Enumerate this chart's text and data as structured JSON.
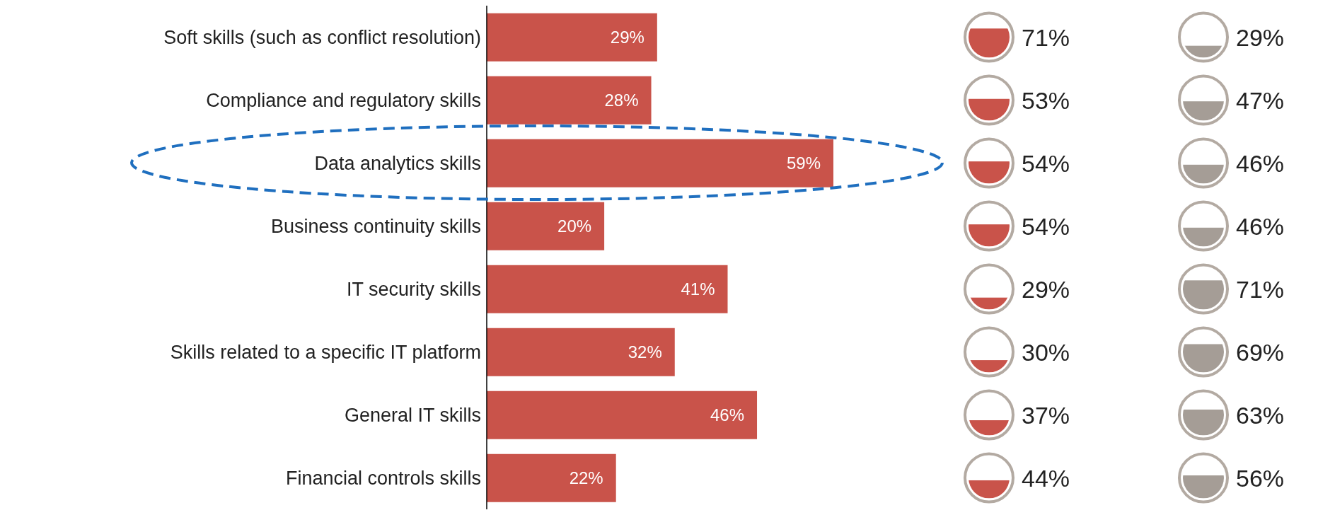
{
  "chart_data": [
    {
      "type": "bar",
      "orientation": "horizontal",
      "categories": [
        "Soft  skills (such as conflict resolution)",
        "Compliance and regulatory skills",
        "Data analytics skills",
        "Business continuity skills",
        "IT security skills",
        "Skills related to a specific IT platform",
        "General IT skills",
        "Financial controls skills"
      ],
      "values": [
        29,
        28,
        59,
        20,
        41,
        32,
        46,
        22
      ],
      "value_labels": [
        "29%",
        "28%",
        "59%",
        "20%",
        "41%",
        "32%",
        "46%",
        "22%"
      ],
      "color": "#c9534a"
    },
    {
      "type": "other",
      "values": [
        71,
        53,
        54,
        54,
        29,
        30,
        37,
        44
      ],
      "value_labels": [
        "71%",
        "53%",
        "54%",
        "54%",
        "29%",
        "30%",
        "37%",
        "44%"
      ],
      "color": "#c9534a"
    },
    {
      "type": "other",
      "values": [
        29,
        47,
        46,
        46,
        71,
        69,
        63,
        56
      ],
      "value_labels": [
        "29%",
        "47%",
        "46%",
        "46%",
        "71%",
        "69%",
        "63%",
        "56%"
      ],
      "color": "#a59d96"
    }
  ]
}
